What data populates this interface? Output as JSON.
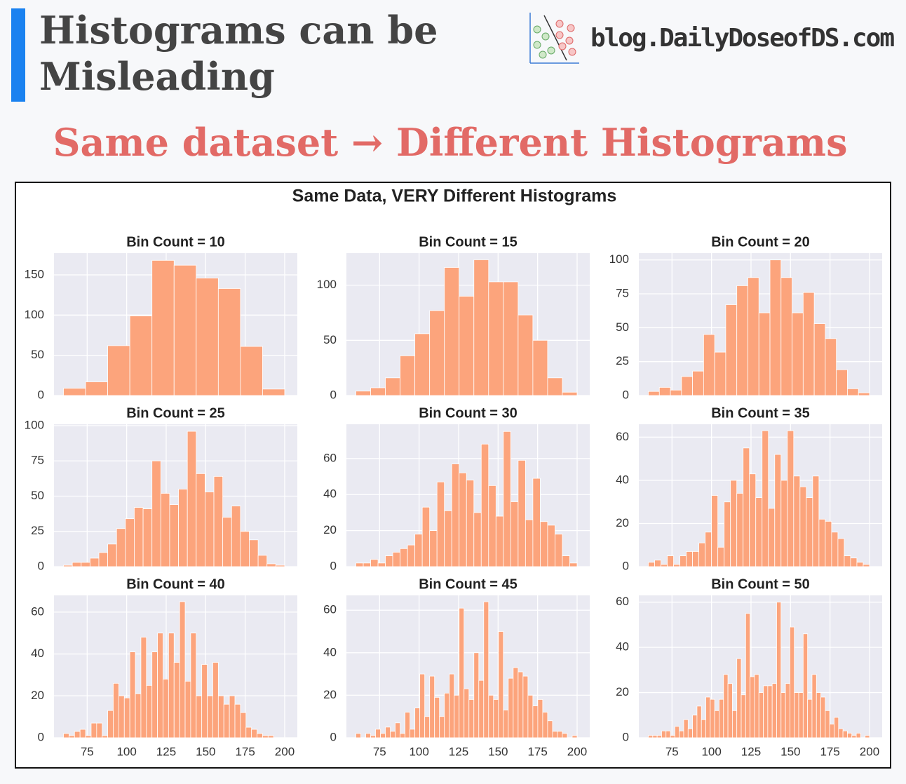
{
  "header": {
    "title_lines": [
      "Histograms can be",
      "Misleading"
    ],
    "brand": "blog.DailyDoseofDS.com",
    "subtitle": "Same dataset →  Different Histograms"
  },
  "figure_title": "Same Data, VERY Different Histograms",
  "chart_data": [
    {
      "type": "histogram",
      "title": "Bin Count = 10",
      "color": "#fca47c",
      "grid": true,
      "show_x_tick_labels": false,
      "xlim": [
        54,
        208
      ],
      "xticks": [
        75,
        100,
        125,
        150,
        175,
        200
      ],
      "ylim": [
        0,
        177
      ],
      "yticks": [
        0,
        50,
        100,
        150
      ],
      "bins": [
        60,
        74,
        88,
        102,
        116,
        130,
        144,
        158,
        172,
        186,
        200
      ],
      "values": [
        9,
        17,
        62,
        99,
        168,
        162,
        146,
        133,
        61,
        8
      ]
    },
    {
      "type": "histogram",
      "title": "Bin Count = 15",
      "color": "#fca47c",
      "grid": true,
      "show_x_tick_labels": false,
      "xlim": [
        54,
        208
      ],
      "xticks": [
        75,
        100,
        125,
        150,
        175,
        200
      ],
      "ylim": [
        0,
        129
      ],
      "yticks": [
        0,
        50,
        100
      ],
      "bins": [
        60,
        69.33,
        78.67,
        88,
        97.33,
        106.67,
        116,
        125.33,
        134.67,
        144,
        153.33,
        162.67,
        172,
        181.33,
        190.67,
        200
      ],
      "values": [
        4,
        7,
        16,
        36,
        56,
        77,
        116,
        90,
        123,
        103,
        103,
        73,
        50,
        16,
        3
      ]
    },
    {
      "type": "histogram",
      "title": "Bin Count = 20",
      "color": "#fca47c",
      "grid": true,
      "show_x_tick_labels": false,
      "xlim": [
        54,
        208
      ],
      "xticks": [
        75,
        100,
        125,
        150,
        175,
        200
      ],
      "ylim": [
        0,
        105
      ],
      "yticks": [
        0,
        25,
        50,
        75,
        100
      ],
      "bins": [
        60,
        67,
        74,
        81,
        88,
        95,
        102,
        109,
        116,
        123,
        130,
        137,
        144,
        151,
        158,
        165,
        172,
        179,
        186,
        193,
        200
      ],
      "values": [
        3,
        6,
        4,
        14,
        18,
        45,
        32,
        67,
        81,
        87,
        61,
        100,
        87,
        61,
        76,
        53,
        42,
        19,
        5,
        2
      ]
    },
    {
      "type": "histogram",
      "title": "Bin Count = 25",
      "color": "#fca47c",
      "grid": true,
      "show_x_tick_labels": false,
      "xlim": [
        54,
        208
      ],
      "xticks": [
        75,
        100,
        125,
        150,
        175,
        200
      ],
      "ylim": [
        0,
        101
      ],
      "yticks": [
        0,
        25,
        50,
        75,
        100
      ],
      "bins": [
        60,
        65.6,
        71.2,
        76.8,
        82.4,
        88,
        93.6,
        99.2,
        104.8,
        110.4,
        116,
        121.6,
        127.2,
        132.8,
        138.4,
        144,
        149.6,
        155.2,
        160.8,
        166.4,
        172,
        177.6,
        183.2,
        188.8,
        194.4,
        200
      ],
      "values": [
        1,
        3,
        3,
        6,
        10,
        16,
        27,
        34,
        42,
        41,
        75,
        52,
        44,
        55,
        96,
        66,
        53,
        64,
        35,
        43,
        25,
        19,
        8,
        2,
        1
      ]
    },
    {
      "type": "histogram",
      "title": "Bin Count = 30",
      "color": "#fca47c",
      "grid": true,
      "show_x_tick_labels": false,
      "xlim": [
        54,
        208
      ],
      "xticks": [
        75,
        100,
        125,
        150,
        175,
        200
      ],
      "ylim": [
        0,
        79
      ],
      "yticks": [
        0,
        20,
        40,
        60
      ],
      "bins": [
        60,
        64.67,
        69.33,
        74,
        78.67,
        83.33,
        88,
        92.67,
        97.33,
        102,
        106.67,
        111.33,
        116,
        120.67,
        125.33,
        130,
        134.67,
        139.33,
        144,
        148.67,
        153.33,
        158,
        162.67,
        167.33,
        172,
        176.67,
        181.33,
        186,
        190.67,
        195.33,
        200
      ],
      "values": [
        2,
        2,
        4,
        2,
        6,
        8,
        10,
        12,
        18,
        33,
        20,
        47,
        31,
        57,
        52,
        48,
        30,
        68,
        45,
        28,
        75,
        36,
        59,
        26,
        49,
        25,
        23,
        18,
        6,
        2
      ]
    },
    {
      "type": "histogram",
      "title": "Bin Count = 35",
      "color": "#fca47c",
      "grid": true,
      "show_x_tick_labels": false,
      "xlim": [
        54,
        208
      ],
      "xticks": [
        75,
        100,
        125,
        150,
        175,
        200
      ],
      "ylim": [
        0,
        66
      ],
      "yticks": [
        0,
        20,
        40,
        60
      ],
      "bins": [
        60,
        64,
        68,
        72,
        76,
        80,
        84,
        88,
        92,
        96,
        100,
        104,
        108,
        112,
        116,
        120,
        124,
        128,
        132,
        136,
        140,
        144,
        148,
        152,
        156,
        160,
        164,
        168,
        172,
        176,
        180,
        184,
        188,
        192,
        196,
        200
      ],
      "values": [
        2,
        3,
        1,
        5,
        1,
        5,
        7,
        7,
        11,
        16,
        33,
        9,
        30,
        40,
        34,
        55,
        43,
        32,
        63,
        27,
        52,
        40,
        63,
        42,
        37,
        32,
        42,
        22,
        21,
        16,
        13,
        5,
        4,
        2,
        1
      ]
    },
    {
      "type": "histogram",
      "title": "Bin Count = 40",
      "color": "#fca47c",
      "grid": true,
      "show_x_tick_labels": true,
      "xlim": [
        54,
        208
      ],
      "xticks": [
        75,
        100,
        125,
        150,
        175,
        200
      ],
      "ylim": [
        0,
        68
      ],
      "yticks": [
        0,
        20,
        40,
        60
      ],
      "bins": [
        60,
        63.5,
        67,
        70.5,
        74,
        77.5,
        81,
        84.5,
        88,
        91.5,
        95,
        98.5,
        102,
        105.5,
        109,
        112.5,
        116,
        119.5,
        123,
        126.5,
        130,
        133.5,
        137,
        140.5,
        144,
        147.5,
        151,
        154.5,
        158,
        161.5,
        165,
        168.5,
        172,
        175.5,
        179,
        182.5,
        186,
        189.5,
        193,
        196.5,
        200
      ],
      "values": [
        2,
        1,
        3,
        4,
        1,
        7,
        7,
        1,
        13,
        26,
        20,
        19,
        41,
        21,
        48,
        25,
        41,
        50,
        28,
        50,
        36,
        65,
        27,
        50,
        20,
        35,
        20,
        36,
        20,
        16,
        20,
        16,
        12,
        5,
        4,
        2,
        1,
        1,
        0,
        0
      ]
    },
    {
      "type": "histogram",
      "title": "Bin Count = 45",
      "color": "#fca47c",
      "grid": true,
      "show_x_tick_labels": true,
      "xlim": [
        54,
        208
      ],
      "xticks": [
        75,
        100,
        125,
        150,
        175,
        200
      ],
      "ylim": [
        0,
        67
      ],
      "yticks": [
        0,
        20,
        40,
        60
      ],
      "bins": [
        60,
        63.11,
        66.22,
        69.33,
        72.44,
        75.56,
        78.67,
        81.78,
        84.89,
        88,
        91.11,
        94.22,
        97.33,
        100.44,
        103.56,
        106.67,
        109.78,
        112.89,
        116,
        119.11,
        122.22,
        125.33,
        128.44,
        131.56,
        134.67,
        137.78,
        140.89,
        144,
        147.11,
        150.22,
        153.33,
        156.44,
        159.56,
        162.67,
        165.78,
        168.89,
        172,
        175.11,
        178.22,
        181.33,
        184.44,
        187.56,
        190.67,
        193.78,
        196.89,
        200
      ],
      "values": [
        2,
        0,
        2,
        1,
        4,
        2,
        5,
        3,
        7,
        2,
        12,
        4,
        14,
        30,
        10,
        29,
        19,
        10,
        21,
        30,
        20,
        61,
        23,
        18,
        40,
        27,
        64,
        20,
        18,
        50,
        13,
        28,
        33,
        31,
        29,
        20,
        15,
        18,
        12,
        8,
        3,
        3,
        2,
        0,
        1
      ]
    },
    {
      "type": "histogram",
      "title": "Bin Count = 50",
      "color": "#fca47c",
      "grid": true,
      "show_x_tick_labels": true,
      "xlim": [
        54,
        208
      ],
      "xticks": [
        75,
        100,
        125,
        150,
        175,
        200
      ],
      "ylim": [
        0,
        63
      ],
      "yticks": [
        0,
        20,
        40,
        60
      ],
      "bins": [
        60,
        62.8,
        65.6,
        68.4,
        71.2,
        74,
        76.8,
        79.6,
        82.4,
        85.2,
        88,
        90.8,
        93.6,
        96.4,
        99.2,
        102,
        104.8,
        107.6,
        110.4,
        113.2,
        116,
        118.8,
        121.6,
        124.4,
        127.2,
        130,
        132.8,
        135.6,
        138.4,
        141.2,
        144,
        146.8,
        149.6,
        152.4,
        155.2,
        158,
        160.8,
        163.6,
        166.4,
        169.2,
        172,
        174.8,
        177.6,
        180.4,
        183.2,
        186,
        188.8,
        191.6,
        194.4,
        197.2,
        200
      ],
      "values": [
        1,
        1,
        1,
        3,
        3,
        1,
        5,
        3,
        8,
        4,
        10,
        14,
        8,
        18,
        17,
        12,
        17,
        28,
        24,
        12,
        35,
        19,
        55,
        27,
        28,
        20,
        23,
        23,
        24,
        60,
        20,
        24,
        49,
        20,
        20,
        46,
        17,
        28,
        20,
        18,
        12,
        6,
        9,
        4,
        3,
        2,
        1,
        2,
        0,
        1
      ]
    }
  ]
}
